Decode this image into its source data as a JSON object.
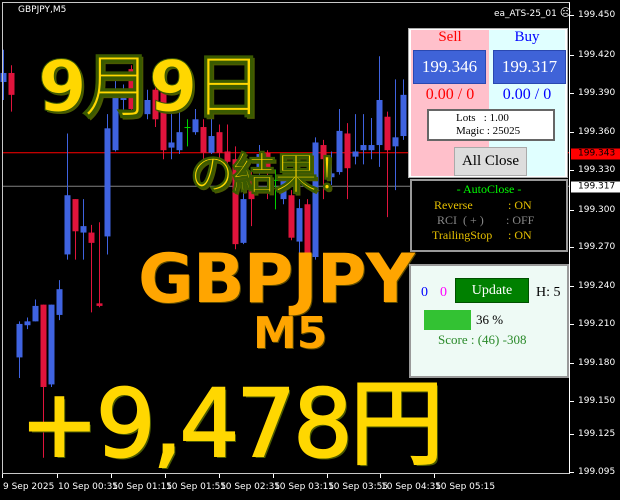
{
  "window": {
    "symbol_label": "GBPJPY,M5",
    "ea_name": "ea_ATS-25_01",
    "ea_status_icon": "sad-face-icon"
  },
  "colors": {
    "bull": "#3f63e0",
    "bear": "#e0143c",
    "doji": "#00d000",
    "ask_line": "#ff0000",
    "bid_line": "#808080",
    "overlay_yellow": "#ffd700",
    "overlay_orange": "#ffa500"
  },
  "overlay": {
    "date": "9月9日",
    "result": "の結果！",
    "pair": "GBPJPY",
    "timeframe": "M5",
    "profit": "+9,478円"
  },
  "price_axis": {
    "labels": [
      "199.450",
      "199.420",
      "199.390",
      "199.360",
      "199.330",
      "199.300",
      "199.270",
      "199.240",
      "199.210",
      "199.180",
      "199.150",
      "199.125",
      "199.095"
    ],
    "ask": "199.343",
    "bid": "199.317"
  },
  "time_axis": {
    "labels": [
      "9 Sep 2025",
      "10 Sep 00:35",
      "10 Sep 01:15",
      "10 Sep 01:55",
      "10 Sep 02:35",
      "10 Sep 03:15",
      "10 Sep 03:55",
      "10 Sep 04:35",
      "10 Sep 05:15"
    ]
  },
  "candles": [
    [
      199.398,
      199.423,
      199.384,
      199.405
    ],
    [
      199.405,
      199.411,
      199.375,
      199.388
    ],
    [
      199.184,
      199.212,
      199.168,
      199.21
    ],
    [
      199.209,
      199.215,
      199.206,
      199.212
    ],
    [
      199.212,
      199.229,
      199.212,
      199.224
    ],
    [
      199.225,
      199.225,
      199.106,
      199.161
    ],
    [
      199.163,
      199.225,
      199.161,
      199.225
    ],
    [
      199.217,
      199.244,
      199.213,
      199.237
    ],
    [
      199.264,
      199.358,
      199.26,
      199.31
    ],
    [
      199.307,
      199.307,
      199.26,
      199.282
    ],
    [
      199.281,
      199.307,
      199.26,
      199.286
    ],
    [
      199.281,
      199.287,
      199.219,
      199.273
    ],
    [
      199.226,
      199.289,
      199.223,
      199.224
    ],
    [
      199.278,
      199.373,
      199.264,
      199.362
    ],
    [
      199.345,
      199.4,
      199.344,
      199.388
    ],
    [
      199.384,
      199.396,
      199.373,
      199.392
    ],
    [
      199.408,
      199.411,
      199.37,
      199.377
    ],
    [
      199.373,
      199.4,
      199.37,
      199.396
    ],
    [
      199.373,
      199.392,
      199.369,
      199.384
    ],
    [
      199.392,
      199.398,
      199.363,
      199.369
    ],
    [
      199.39,
      199.398,
      199.338,
      199.345
    ],
    [
      199.347,
      199.373,
      199.338,
      199.351
    ],
    [
      199.345,
      199.377,
      199.342,
      199.359
    ],
    [
      199.363,
      199.369,
      199.348,
      199.363
    ],
    [
      199.359,
      199.377,
      199.357,
      199.369
    ],
    [
      199.363,
      199.369,
      199.338,
      199.343
    ],
    [
      199.343,
      199.373,
      199.342,
      199.356
    ],
    [
      199.359,
      199.365,
      199.338,
      199.343
    ],
    [
      199.344,
      199.365,
      199.334,
      199.336
    ],
    [
      199.338,
      199.348,
      199.268,
      199.272
    ],
    [
      199.273,
      199.314,
      199.272,
      199.307
    ],
    [
      199.322,
      199.33,
      199.286,
      199.307
    ],
    [
      199.33,
      199.349,
      199.326,
      199.342
    ],
    [
      199.343,
      199.345,
      199.307,
      199.33
    ],
    [
      199.322,
      199.33,
      199.299,
      199.322
    ],
    [
      199.307,
      199.33,
      199.303,
      199.322
    ],
    [
      199.31,
      199.314,
      199.275,
      199.277
    ],
    [
      199.274,
      199.307,
      199.237,
      199.3
    ],
    [
      199.303,
      199.307,
      199.26,
      199.264
    ],
    [
      199.262,
      199.355,
      199.26,
      199.351
    ],
    [
      199.349,
      199.353,
      199.307,
      199.338
    ],
    [
      199.324,
      199.344,
      199.318,
      199.327
    ],
    [
      199.328,
      199.377,
      199.326,
      199.36
    ],
    [
      199.358,
      199.366,
      199.307,
      199.331
    ],
    [
      199.34,
      199.373,
      199.334,
      199.344
    ],
    [
      199.345,
      199.373,
      199.334,
      199.349
    ],
    [
      199.345,
      199.37,
      199.338,
      199.349
    ],
    [
      199.349,
      199.418,
      199.332,
      199.384
    ],
    [
      199.371,
      199.375,
      199.293,
      199.345
    ],
    [
      199.348,
      199.4,
      199.314,
      199.355
    ],
    [
      199.356,
      199.4,
      199.353,
      199.388
    ]
  ],
  "trade_panel": {
    "sell_label": "Sell",
    "buy_label": "Buy",
    "sell_price": "199.346",
    "buy_price": "199.317",
    "sell_pl": "0.00 / 0",
    "buy_pl": "0.00 / 0",
    "lots": "Lots   : 1.00",
    "magic": "Magic : 25025",
    "all_close": "All Close"
  },
  "autoclose": {
    "title": "- AutoClose -",
    "rows": [
      {
        "label": "Reverse",
        "value": ": ON"
      },
      {
        "label": "RCI  ( + )",
        "value": ": OFF"
      },
      {
        "label": "TrailingStop",
        "value": ": ON"
      }
    ]
  },
  "stats_panel": {
    "count_blue": "0",
    "count_magenta": "0",
    "update": "Update",
    "h": "H: 5",
    "progress": 36,
    "progress_label": "36 %",
    "score": "Score : (46) -308"
  }
}
